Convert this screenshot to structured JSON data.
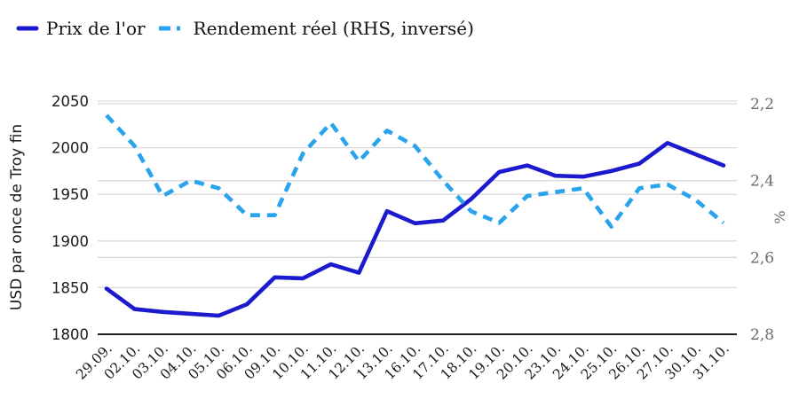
{
  "legend": {
    "series1_label": "Prix de l'or",
    "series2_label": "Rendement réel (RHS, inversé)"
  },
  "left_axis": {
    "title": "USD par once de Troy fin",
    "ticks": [
      {
        "label": "2050",
        "value": 2050
      },
      {
        "label": "2000",
        "value": 2000
      },
      {
        "label": "1950",
        "value": 1950
      },
      {
        "label": "1900",
        "value": 1900
      },
      {
        "label": "1850",
        "value": 1850
      },
      {
        "label": "1800",
        "value": 1800
      }
    ]
  },
  "right_axis": {
    "title": "%",
    "ticks": [
      {
        "label": "2,2",
        "value": 2.2
      },
      {
        "label": "2,4",
        "value": 2.4
      },
      {
        "label": "2,6",
        "value": 2.6
      },
      {
        "label": "2,8",
        "value": 2.8
      }
    ]
  },
  "colors": {
    "gold_line": "#1b1bcd",
    "yield_line": "#29a3eb",
    "grid": "#d9d9d9",
    "axis": "#000000",
    "left_text": "#1a1a1a",
    "right_text": "#6b6b6b"
  },
  "chart_data": {
    "type": "line",
    "categories": [
      "29.09.",
      "02.10.",
      "03.10.",
      "04.10.",
      "05.10.",
      "06.10.",
      "09.10.",
      "10.10.",
      "11.10.",
      "12.10.",
      "13.10.",
      "16.10.",
      "17.10.",
      "18.10.",
      "19.10.",
      "20.10.",
      "23.10.",
      "24.10.",
      "25.10.",
      "26.10.",
      "27.10.",
      "30.10.",
      "31.10."
    ],
    "series": [
      {
        "name": "Prix de l'or",
        "axis": "left",
        "style": "solid",
        "values": [
          1849,
          1827,
          1824,
          1822,
          1820,
          1832,
          1861,
          1860,
          1875,
          1866,
          1932,
          1919,
          1922,
          1945,
          1974,
          1981,
          1970,
          1969,
          1975,
          1983,
          2005,
          1993,
          1981
        ]
      },
      {
        "name": "Rendement réel (RHS, inversé)",
        "axis": "right",
        "style": "dashed",
        "values": [
          2.23,
          2.31,
          2.44,
          2.4,
          2.42,
          2.49,
          2.49,
          2.33,
          2.25,
          2.35,
          2.27,
          2.31,
          2.4,
          2.48,
          2.51,
          2.44,
          2.43,
          2.42,
          2.52,
          2.42,
          2.41,
          2.45,
          2.51
        ]
      }
    ],
    "left_ylim": [
      1800,
      2050
    ],
    "right_ylim": [
      2.2,
      2.8
    ],
    "right_axis_display": "inverted (2,2 top — 2,8 bottom)",
    "grid": true,
    "legend_position": "top-left"
  }
}
